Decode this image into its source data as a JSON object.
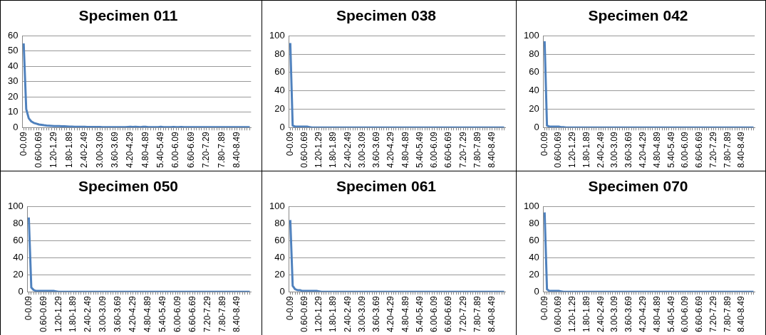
{
  "chart_data": [
    {
      "type": "line",
      "title": "Specimen 011",
      "color": "#4f81bd",
      "marker": "none",
      "grid": "y",
      "ylim": [
        0,
        60
      ],
      "yticks": [
        0,
        10,
        20,
        30,
        40,
        50,
        60
      ],
      "categories": [
        "0-0.09",
        null,
        null,
        null,
        null,
        null,
        "0.60-0.69",
        null,
        null,
        null,
        null,
        null,
        "1.20-1.29",
        null,
        null,
        null,
        null,
        null,
        "1.80-1.89",
        null,
        null,
        null,
        null,
        null,
        "2.40-2.49",
        null,
        null,
        null,
        null,
        null,
        "3.00-3.09",
        null,
        null,
        null,
        null,
        null,
        "3.60-3.69",
        null,
        null,
        null,
        null,
        null,
        "4.20-4.29",
        null,
        null,
        null,
        null,
        null,
        "4.80-4.89",
        null,
        null,
        null,
        null,
        null,
        "5.40-5.49",
        null,
        null,
        null,
        null,
        null,
        "6.00-6.09",
        null,
        null,
        null,
        null,
        null,
        "6.60-6.69",
        null,
        null,
        null,
        null,
        null,
        "7.20-7.29",
        null,
        null,
        null,
        null,
        null,
        "7.80-7.89",
        null,
        null,
        null,
        null,
        null,
        "8.40-8.49",
        null,
        null,
        null,
        null,
        null
      ],
      "values": [
        55,
        12,
        6,
        4,
        3,
        2.5,
        2,
        1.8,
        1.5,
        1.3,
        1.2,
        1.1,
        1,
        1,
        0.9,
        0.8,
        0.8,
        0.7,
        0.6,
        0.6,
        0.5,
        0.5,
        0.5,
        0.5,
        0.5,
        0.4,
        0.4,
        0.4,
        0.4,
        0.4,
        0.4,
        0.3,
        0.3,
        0.3,
        0.3,
        0.3,
        0.3,
        0.3,
        0.3,
        0.3,
        0.3,
        0.4,
        0.5,
        0.4,
        0.5,
        0.4,
        0.3,
        0.5,
        0.5,
        0.3,
        0.3,
        0.2,
        0.2,
        0.3,
        0.5,
        0.3,
        0.2,
        0.2,
        0.3,
        0.4,
        0.2,
        0.3,
        0.4,
        0.2,
        0.2,
        0.2,
        0.2,
        0.2,
        0.2,
        0.3,
        0.2,
        0.2,
        0.2,
        0.2,
        0.2,
        0.2,
        0.2,
        0.2,
        0.2,
        0.2,
        0.2,
        0.2,
        0.2,
        0.2,
        0.2,
        0.2,
        0.2,
        0.2,
        0.2,
        0.2
      ]
    },
    {
      "type": "line",
      "title": "Specimen 038",
      "color": "#4f81bd",
      "marker": "none",
      "grid": "y",
      "ylim": [
        0,
        100
      ],
      "yticks": [
        0,
        20,
        40,
        60,
        80,
        100
      ],
      "categories": [
        "0-0.09",
        null,
        null,
        null,
        null,
        null,
        "0.60-0.69",
        null,
        null,
        null,
        null,
        null,
        "1.20-1.29",
        null,
        null,
        null,
        null,
        null,
        "1.80-1.89",
        null,
        null,
        null,
        null,
        null,
        "2.40-2.49",
        null,
        null,
        null,
        null,
        null,
        "3.00-3.09",
        null,
        null,
        null,
        null,
        null,
        "3.60-3.69",
        null,
        null,
        null,
        null,
        null,
        "4.20-4.29",
        null,
        null,
        null,
        null,
        null,
        "4.80-4.89",
        null,
        null,
        null,
        null,
        null,
        "5.40-5.49",
        null,
        null,
        null,
        null,
        null,
        "6.00-6.09",
        null,
        null,
        null,
        null,
        null,
        "6.60-6.69",
        null,
        null,
        null,
        null,
        null,
        "7.20-7.29",
        null,
        null,
        null,
        null,
        null,
        "7.80-7.89",
        null,
        null,
        null,
        null,
        null,
        "8.40-8.49",
        null,
        null,
        null,
        null,
        null
      ],
      "values": [
        92,
        2,
        1,
        1,
        1,
        1,
        1,
        1,
        0.5,
        0,
        0,
        0,
        0,
        0,
        0,
        0,
        0,
        0,
        0,
        0,
        0,
        0,
        0,
        0,
        0,
        0,
        0,
        0,
        0,
        0,
        0,
        0,
        0,
        0,
        0,
        0,
        0,
        0,
        0,
        0,
        0,
        0,
        0,
        0,
        0,
        0,
        0,
        0,
        0,
        0,
        0,
        0,
        0,
        0,
        0,
        0,
        0,
        0,
        0,
        0,
        0,
        0,
        0,
        0,
        0,
        0,
        0,
        0,
        0,
        0,
        0,
        0,
        0,
        0,
        0,
        0,
        0,
        0,
        0,
        0,
        0,
        0,
        0,
        0,
        0,
        0,
        0,
        0,
        0,
        0
      ]
    },
    {
      "type": "line",
      "title": "Specimen 042",
      "color": "#4f81bd",
      "marker": "none",
      "grid": "y",
      "ylim": [
        0,
        100
      ],
      "yticks": [
        0,
        20,
        40,
        60,
        80,
        100
      ],
      "categories": [
        "0-0.09",
        null,
        null,
        null,
        null,
        null,
        "0.60-0.69",
        null,
        null,
        null,
        null,
        null,
        "1.20-1.29",
        null,
        null,
        null,
        null,
        null,
        "1.80-1.89",
        null,
        null,
        null,
        null,
        null,
        "2.40-2.49",
        null,
        null,
        null,
        null,
        null,
        "3.00-3.09",
        null,
        null,
        null,
        null,
        null,
        "3.60-3.69",
        null,
        null,
        null,
        null,
        null,
        "4.20-4.29",
        null,
        null,
        null,
        null,
        null,
        "4.80-4.89",
        null,
        null,
        null,
        null,
        null,
        "5.40-5.49",
        null,
        null,
        null,
        null,
        null,
        "6.00-6.09",
        null,
        null,
        null,
        null,
        null,
        "6.60-6.69",
        null,
        null,
        null,
        null,
        null,
        "7.20-7.29",
        null,
        null,
        null,
        null,
        null,
        "7.80-7.89",
        null,
        null,
        null,
        null,
        null,
        "8.40-8.49",
        null,
        null,
        null,
        null,
        null
      ],
      "values": [
        94,
        2,
        1,
        1,
        1,
        1,
        1,
        0.5,
        0.5,
        0,
        0,
        0,
        0,
        0,
        0,
        0,
        0,
        0,
        0,
        0,
        0,
        0,
        0,
        0,
        0,
        0,
        0,
        0,
        0,
        0,
        0,
        0,
        0,
        0,
        0,
        0,
        0,
        0,
        0,
        0,
        0,
        0,
        0,
        0,
        0,
        0,
        0,
        0,
        0,
        0,
        0,
        0,
        0,
        0,
        0,
        0,
        0,
        0,
        0,
        0,
        0,
        0,
        0,
        0,
        0,
        0,
        0,
        0,
        0,
        0,
        0,
        0,
        0,
        0,
        0,
        0,
        0,
        0,
        0,
        0,
        0,
        0,
        0,
        0,
        0,
        0,
        0,
        0,
        0,
        0
      ]
    },
    {
      "type": "line",
      "title": "Specimen 050",
      "color": "#4f81bd",
      "marker": "none",
      "grid": "y",
      "ylim": [
        0,
        100
      ],
      "yticks": [
        0,
        20,
        40,
        60,
        80,
        100
      ],
      "categories": [
        "0-0.09",
        null,
        null,
        null,
        null,
        null,
        "0.60-0.69",
        null,
        null,
        null,
        null,
        null,
        "1.20-1.29",
        null,
        null,
        null,
        null,
        null,
        "1.80-1.89",
        null,
        null,
        null,
        null,
        null,
        "2.40-2.49",
        null,
        null,
        null,
        null,
        null,
        "3.00-3.09",
        null,
        null,
        null,
        null,
        null,
        "3.60-3.69",
        null,
        null,
        null,
        null,
        null,
        "4.20-4.29",
        null,
        null,
        null,
        null,
        null,
        "4.80-4.89",
        null,
        null,
        null,
        null,
        null,
        "5.40-5.49",
        null,
        null,
        null,
        null,
        null,
        "6.00-6.09",
        null,
        null,
        null,
        null,
        null,
        "6.60-6.69",
        null,
        null,
        null,
        null,
        null,
        "7.20-7.29",
        null,
        null,
        null,
        null,
        null,
        "7.80-7.89",
        null,
        null,
        null,
        null,
        null,
        "8.40-8.49",
        null,
        null,
        null,
        null,
        null
      ],
      "values": [
        87,
        5,
        2,
        1,
        1,
        1,
        1,
        1,
        1,
        1,
        1,
        0.5,
        0,
        0,
        0,
        0,
        0,
        0,
        0,
        0,
        0,
        0,
        0,
        0,
        0,
        0,
        0,
        0,
        0,
        0,
        0,
        0,
        0,
        0,
        0,
        0,
        0,
        0,
        0,
        0,
        0,
        0,
        0,
        0,
        0,
        0,
        0,
        0,
        0,
        0,
        0,
        0,
        0,
        0,
        0,
        0,
        0,
        0,
        0,
        0,
        0,
        0,
        0,
        0,
        0,
        0,
        0,
        0,
        0,
        0,
        0,
        0,
        0,
        0,
        0,
        0,
        0,
        0,
        0,
        0,
        0,
        0,
        0,
        0,
        0,
        0,
        0,
        0,
        0,
        0
      ]
    },
    {
      "type": "line",
      "title": "Specimen 061",
      "color": "#4f81bd",
      "marker": "none",
      "grid": "y",
      "ylim": [
        0,
        100
      ],
      "yticks": [
        0,
        20,
        40,
        60,
        80,
        100
      ],
      "categories": [
        "0-0.09",
        null,
        null,
        null,
        null,
        null,
        "0.60-0.69",
        null,
        null,
        null,
        null,
        null,
        "1.20-1.29",
        null,
        null,
        null,
        null,
        null,
        "1.80-1.89",
        null,
        null,
        null,
        null,
        null,
        "2.40-2.49",
        null,
        null,
        null,
        null,
        null,
        "3.00-3.09",
        null,
        null,
        null,
        null,
        null,
        "3.60-3.69",
        null,
        null,
        null,
        null,
        null,
        "4.20-4.29",
        null,
        null,
        null,
        null,
        null,
        "4.80-4.89",
        null,
        null,
        null,
        null,
        null,
        "5.40-5.49",
        null,
        null,
        null,
        null,
        null,
        "6.00-6.09",
        null,
        null,
        null,
        null,
        null,
        "6.60-6.69",
        null,
        null,
        null,
        null,
        null,
        "7.20-7.29",
        null,
        null,
        null,
        null,
        null,
        "7.80-7.89",
        null,
        null,
        null,
        null,
        null,
        "8.40-8.49",
        null,
        null,
        null,
        null,
        null
      ],
      "values": [
        84,
        7,
        3,
        2,
        2,
        1,
        1,
        1,
        1,
        1,
        1,
        1,
        0.5,
        0,
        0,
        0,
        0,
        0,
        0,
        0,
        0,
        0,
        0,
        0,
        0,
        0,
        0,
        0,
        0,
        0,
        0,
        0,
        0,
        0,
        0,
        0,
        0,
        0,
        0,
        0,
        0,
        0,
        0,
        0,
        0,
        0,
        0,
        0,
        0,
        0,
        0,
        0,
        0,
        0,
        0,
        0,
        0,
        0,
        0,
        0,
        0,
        0,
        0,
        0,
        0,
        0,
        0,
        0,
        0,
        0,
        0,
        0,
        0,
        0,
        0,
        0,
        0,
        0,
        0,
        0,
        0,
        0,
        0,
        0,
        0,
        0,
        0,
        0,
        0,
        0
      ]
    },
    {
      "type": "line",
      "title": "Specimen 070",
      "color": "#4f81bd",
      "marker": "none",
      "grid": "y",
      "ylim": [
        0,
        100
      ],
      "yticks": [
        0,
        20,
        40,
        60,
        80,
        100
      ],
      "categories": [
        "0-0.09",
        null,
        null,
        null,
        null,
        null,
        "0.60-0.69",
        null,
        null,
        null,
        null,
        null,
        "1.20-1.29",
        null,
        null,
        null,
        null,
        null,
        "1.80-1.89",
        null,
        null,
        null,
        null,
        null,
        "2.40-2.49",
        null,
        null,
        null,
        null,
        null,
        "3.00-3.09",
        null,
        null,
        null,
        null,
        null,
        "3.60-3.69",
        null,
        null,
        null,
        null,
        null,
        "4.20-4.29",
        null,
        null,
        null,
        null,
        null,
        "4.80-4.89",
        null,
        null,
        null,
        null,
        null,
        "5.40-5.49",
        null,
        null,
        null,
        null,
        null,
        "6.00-6.09",
        null,
        null,
        null,
        null,
        null,
        "6.60-6.69",
        null,
        null,
        null,
        null,
        null,
        "7.20-7.29",
        null,
        null,
        null,
        null,
        null,
        "7.80-7.89",
        null,
        null,
        null,
        null,
        null,
        "8.40-8.49",
        null,
        null,
        null,
        null,
        null
      ],
      "values": [
        93,
        3,
        1,
        1,
        1,
        1,
        1,
        0.5,
        0,
        0,
        0,
        0,
        0,
        0,
        0,
        0,
        0,
        0,
        0,
        0,
        0,
        0,
        0,
        0,
        0,
        0,
        0,
        0,
        0,
        0,
        0,
        0,
        0,
        0,
        0,
        0,
        0,
        0,
        0,
        0,
        0,
        0,
        0,
        0,
        0,
        0,
        0,
        0,
        0,
        0,
        0,
        0,
        0,
        0,
        0,
        0,
        0,
        0,
        0,
        0,
        0,
        0,
        0,
        0,
        0,
        0,
        0,
        0,
        0,
        0,
        0,
        0,
        0,
        0,
        0,
        0,
        0,
        0,
        0,
        0,
        0,
        0,
        0,
        0,
        0,
        0,
        0,
        0,
        0,
        0
      ]
    }
  ]
}
